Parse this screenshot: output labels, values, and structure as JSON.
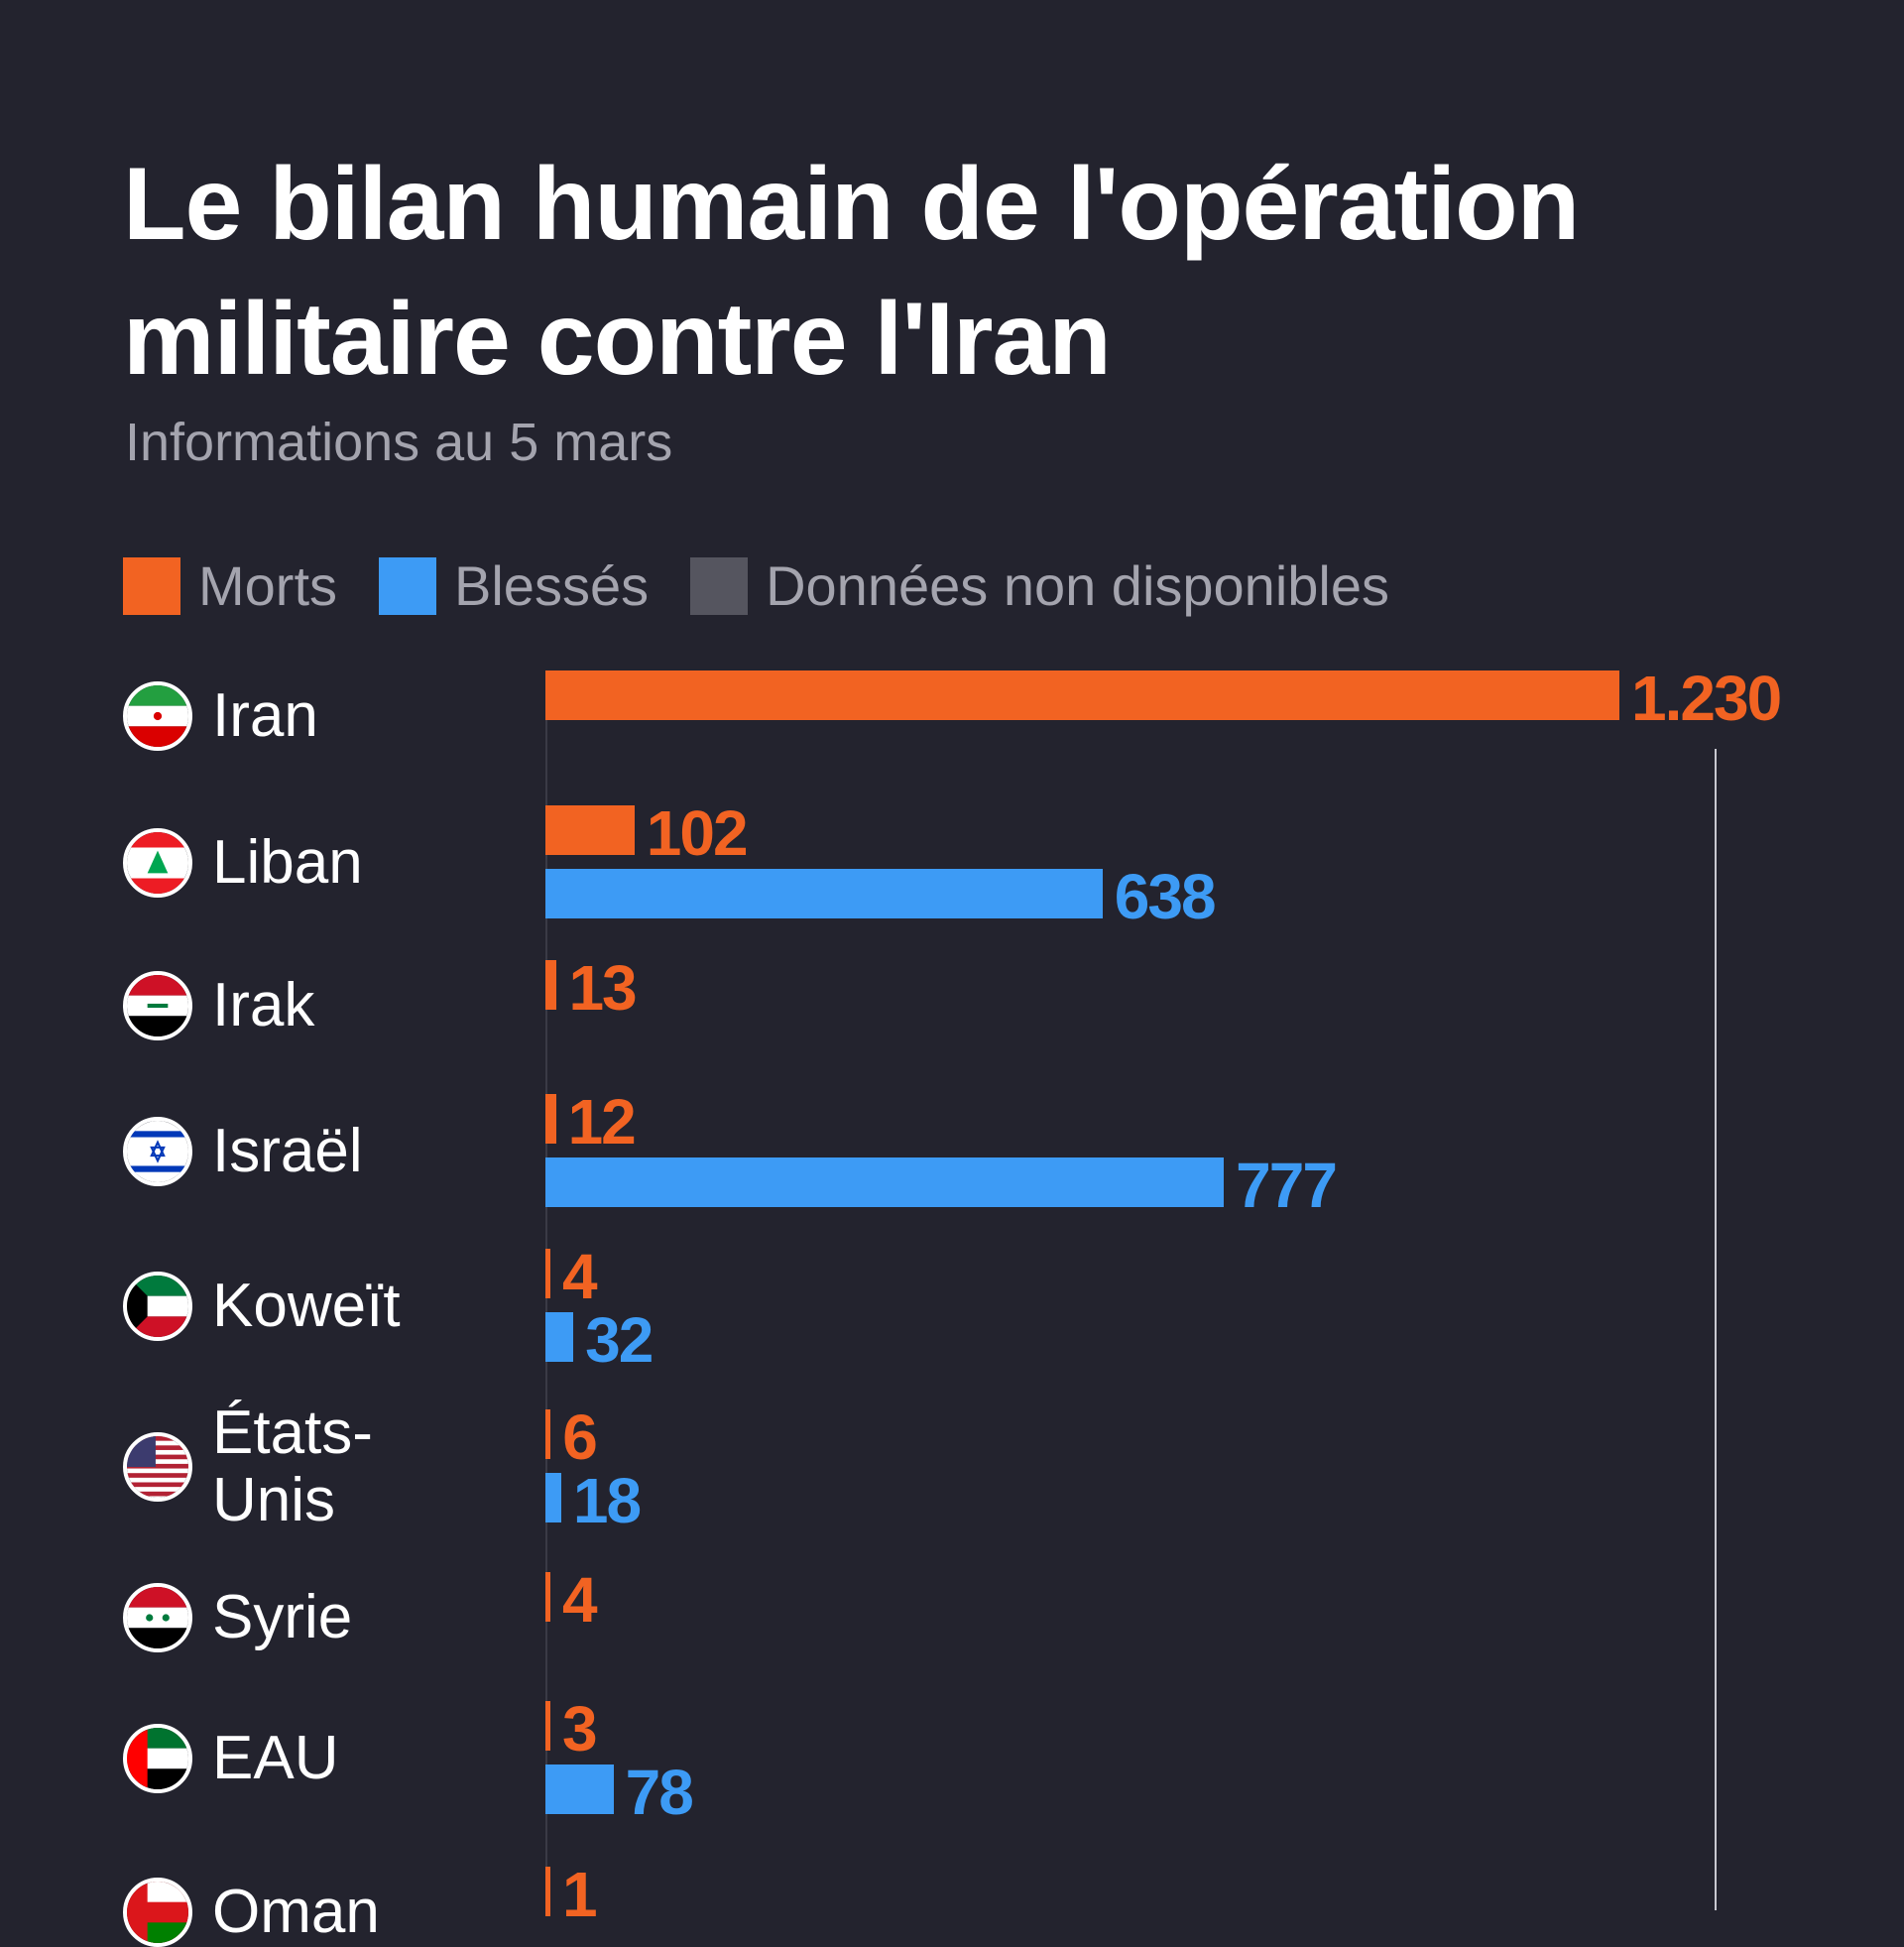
{
  "chart_data": {
    "type": "bar",
    "orientation": "horizontal",
    "title": "Le bilan humain de l'opération militaire contre l'Iran",
    "subtitle": "Informations au 5 mars",
    "legend": [
      {
        "name": "Morts",
        "color": "#f26322"
      },
      {
        "name": "Blessés",
        "color": "#3d9bf5"
      },
      {
        "name": "Données non disponibles",
        "color": "#55555f"
      }
    ],
    "legend_placement": "top-left",
    "categories": [
      "Iran",
      "Liban",
      "Irak",
      "Israël",
      "Koweït",
      "États-Unis",
      "Syrie",
      "EAU",
      "Oman"
    ],
    "flags": [
      "iran",
      "lebanon",
      "iraq",
      "israel",
      "kuwait",
      "usa",
      "syria",
      "uae",
      "oman"
    ],
    "series": [
      {
        "name": "Morts",
        "values": [
          1230,
          102,
          13,
          12,
          4,
          6,
          4,
          3,
          1
        ],
        "labels": [
          "1.230",
          "102",
          "13",
          "12",
          "4",
          "6",
          "4",
          "3",
          "1"
        ]
      },
      {
        "name": "Blessés",
        "values": [
          null,
          638,
          null,
          777,
          32,
          18,
          null,
          78,
          null
        ],
        "labels": [
          null,
          "638",
          null,
          "777",
          "32",
          "18",
          null,
          "78",
          null
        ]
      }
    ],
    "xlim": [
      0,
      1230
    ],
    "grid": false
  }
}
